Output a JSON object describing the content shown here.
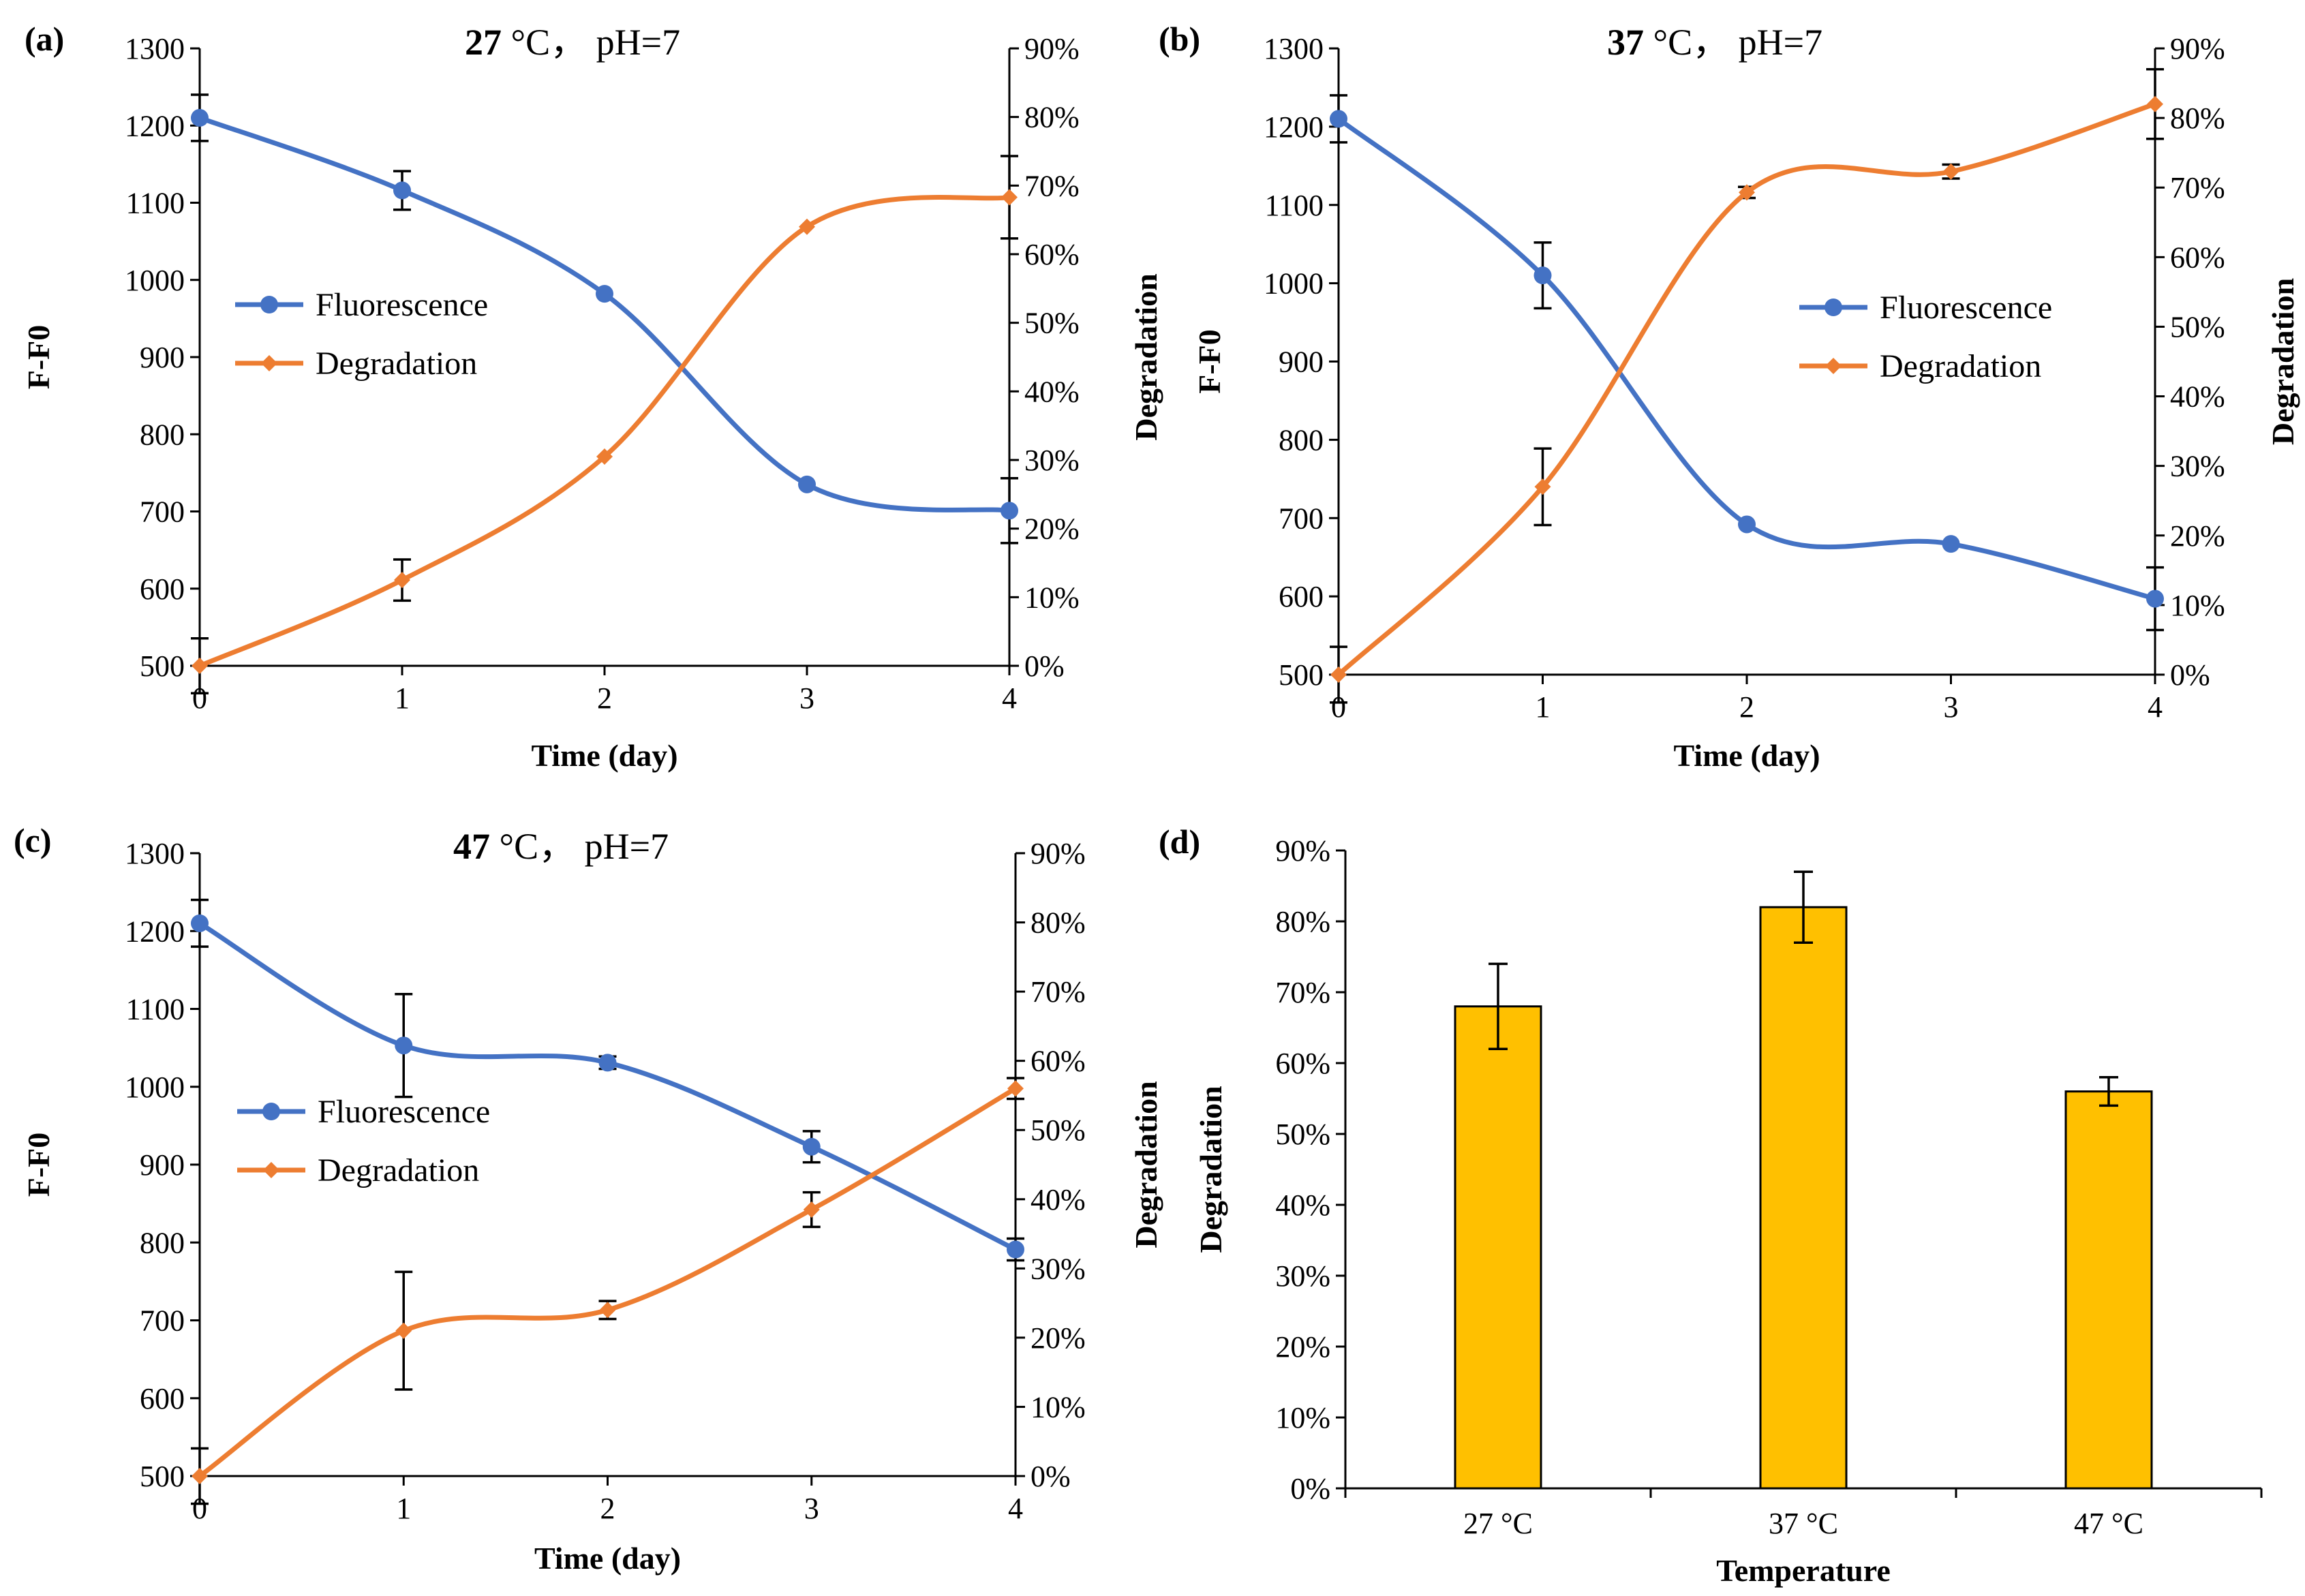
{
  "colors": {
    "fluorescence": "#4472C4",
    "degradation": "#ED7D31",
    "bar": "#FFC000",
    "axis": "#000000"
  },
  "chart_data": [
    {
      "panel_label": "(a)",
      "type": "line",
      "title_temp": "27",
      "title_rest": " °C， pH=7",
      "xlabel": "Time (day)",
      "ylabel_left": "F-F0",
      "ylabel_right": "Degradation",
      "x": [
        0,
        1,
        2,
        3,
        4
      ],
      "xticks": [
        "0",
        "1",
        "2",
        "3",
        "4"
      ],
      "ylim_left": [
        500,
        1300
      ],
      "yticks_left": [
        "500",
        "600",
        "700",
        "800",
        "900",
        "1000",
        "1100",
        "1200",
        "1300"
      ],
      "ylim_right": [
        0,
        90
      ],
      "yticks_right": [
        "0%",
        "10%",
        "20%",
        "30%",
        "40%",
        "50%",
        "60%",
        "70%",
        "80%",
        "90%"
      ],
      "series": [
        {
          "name": "Fluorescence",
          "axis": "left",
          "values": [
            1210,
            1116,
            982,
            735,
            701
          ],
          "errors": [
            30,
            25,
            0,
            0,
            42
          ]
        },
        {
          "name": "Degradation",
          "axis": "right",
          "values": [
            0,
            12.5,
            30.5,
            64,
            68.3
          ],
          "errors": [
            4,
            3,
            0,
            0,
            6
          ]
        }
      ],
      "legend": "center-left"
    },
    {
      "panel_label": "(b)",
      "type": "line",
      "title_temp": "37",
      "title_rest": " °C， pH=7",
      "xlabel": "Time (day)",
      "ylabel_left": "F-F0",
      "ylabel_right": "Degradation",
      "x": [
        0,
        1,
        2,
        3,
        4
      ],
      "xticks": [
        "0",
        "1",
        "2",
        "3",
        "4"
      ],
      "ylim_left": [
        500,
        1300
      ],
      "yticks_left": [
        "500",
        "600",
        "700",
        "800",
        "900",
        "1000",
        "1100",
        "1200",
        "1300"
      ],
      "ylim_right": [
        0,
        90
      ],
      "yticks_right": [
        "0%",
        "10%",
        "20%",
        "30%",
        "40%",
        "50%",
        "60%",
        "70%",
        "80%",
        "90%"
      ],
      "series": [
        {
          "name": "Fluorescence",
          "axis": "left",
          "values": [
            1210,
            1010,
            692,
            667,
            597
          ],
          "errors": [
            30,
            42,
            0,
            0,
            40
          ]
        },
        {
          "name": "Degradation",
          "axis": "right",
          "values": [
            0,
            27,
            69.3,
            72.3,
            82
          ],
          "errors": [
            4,
            5.5,
            0.8,
            1,
            5
          ]
        }
      ],
      "legend": "center-right"
    },
    {
      "panel_label": "(c)",
      "type": "line",
      "title_temp": "47",
      "title_rest": " °C， pH=7",
      "xlabel": "Time (day)",
      "ylabel_left": "F-F0",
      "ylabel_right": "Degradation",
      "x": [
        0,
        1,
        2,
        3,
        4
      ],
      "xticks": [
        "0",
        "1",
        "2",
        "3",
        "4"
      ],
      "ylim_left": [
        500,
        1300
      ],
      "yticks_left": [
        "500",
        "600",
        "700",
        "800",
        "900",
        "1000",
        "1100",
        "1200",
        "1300"
      ],
      "ylim_right": [
        0,
        90
      ],
      "yticks_right": [
        "0%",
        "10%",
        "20%",
        "30%",
        "40%",
        "50%",
        "60%",
        "70%",
        "80%",
        "90%"
      ],
      "series": [
        {
          "name": "Fluorescence",
          "axis": "left",
          "values": [
            1210,
            1053,
            1031,
            923,
            791
          ],
          "errors": [
            30,
            66,
            8,
            20,
            14
          ]
        },
        {
          "name": "Degradation",
          "axis": "right",
          "values": [
            0,
            21,
            24,
            38.5,
            56
          ],
          "errors": [
            4,
            8.5,
            1.3,
            2.5,
            1.5
          ]
        }
      ],
      "legend": "center-left"
    },
    {
      "panel_label": "(d)",
      "type": "bar",
      "xlabel": "Temperature",
      "ylabel": "Degradation",
      "categories": [
        "27 °C",
        "37  °C",
        "47  °C"
      ],
      "values": [
        68,
        82,
        56
      ],
      "errors": [
        6,
        5,
        2
      ],
      "ylim": [
        0,
        90
      ],
      "yticks": [
        "0%",
        "10%",
        "20%",
        "30%",
        "40%",
        "50%",
        "60%",
        "70%",
        "80%",
        "90%"
      ]
    }
  ]
}
